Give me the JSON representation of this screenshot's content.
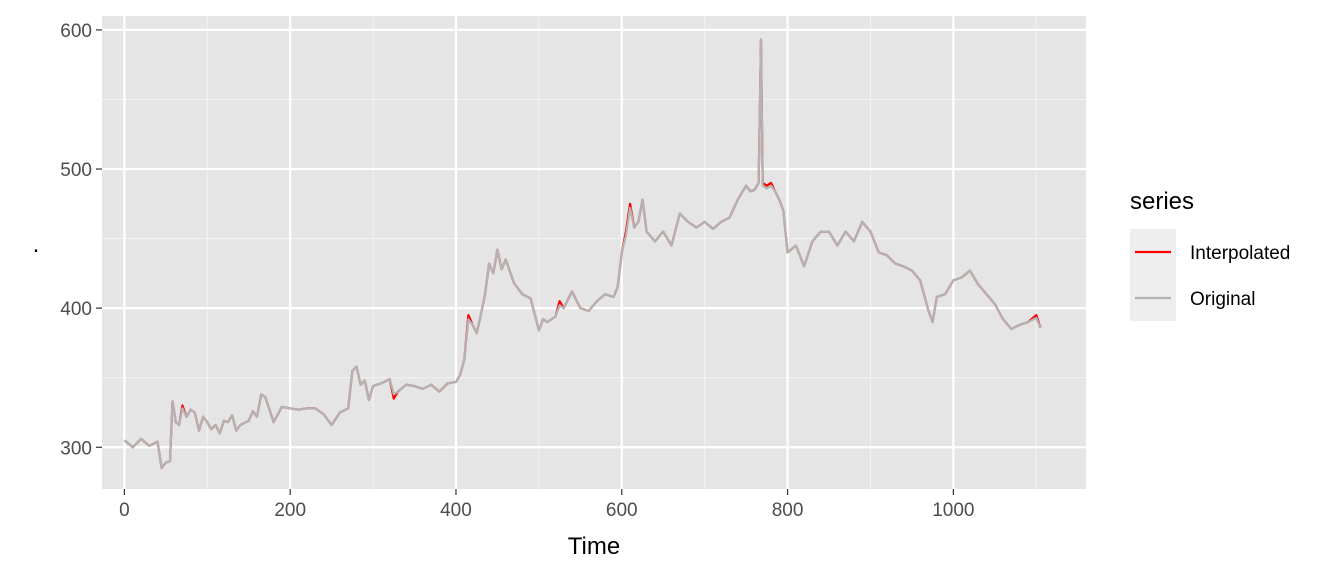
{
  "chart_data": {
    "type": "line",
    "title": "",
    "xlabel": "Time",
    "ylabel": ".",
    "xlim": [
      -27,
      1160
    ],
    "ylim": [
      270,
      610
    ],
    "x_ticks": [
      0,
      200,
      400,
      600,
      800,
      1000
    ],
    "x_tick_labels": [
      "0",
      "200",
      "400",
      "600",
      "800",
      "1000"
    ],
    "y_ticks": [
      300,
      400,
      500,
      600
    ],
    "y_tick_labels": [
      "300",
      "400",
      "500",
      "600"
    ],
    "grid": true,
    "legend": {
      "title": "series",
      "position": "right"
    },
    "series": [
      {
        "name": "Interpolated",
        "color": "#ff0000",
        "points": [
          [
            0,
            305
          ],
          [
            10,
            300
          ],
          [
            20,
            306
          ],
          [
            30,
            301
          ],
          [
            40,
            304
          ],
          [
            45,
            285
          ],
          [
            50,
            289
          ],
          [
            55,
            290
          ],
          [
            58,
            333
          ],
          [
            62,
            318
          ],
          [
            66,
            316
          ],
          [
            70,
            330
          ],
          [
            75,
            322
          ],
          [
            80,
            327
          ],
          [
            85,
            325
          ],
          [
            90,
            312
          ],
          [
            95,
            322
          ],
          [
            100,
            318
          ],
          [
            105,
            313
          ],
          [
            110,
            316
          ],
          [
            115,
            310
          ],
          [
            120,
            319
          ],
          [
            125,
            318
          ],
          [
            130,
            323
          ],
          [
            135,
            312
          ],
          [
            140,
            316
          ],
          [
            150,
            319
          ],
          [
            155,
            326
          ],
          [
            160,
            322
          ],
          [
            165,
            338
          ],
          [
            170,
            336
          ],
          [
            175,
            327
          ],
          [
            180,
            318
          ],
          [
            190,
            329
          ],
          [
            200,
            328
          ],
          [
            210,
            327
          ],
          [
            220,
            328
          ],
          [
            230,
            328
          ],
          [
            240,
            324
          ],
          [
            250,
            316
          ],
          [
            260,
            325
          ],
          [
            270,
            328
          ],
          [
            275,
            355
          ],
          [
            280,
            358
          ],
          [
            285,
            345
          ],
          [
            290,
            348
          ],
          [
            295,
            334
          ],
          [
            300,
            344
          ],
          [
            310,
            346
          ],
          [
            320,
            349
          ],
          [
            325,
            335
          ],
          [
            330,
            340
          ],
          [
            340,
            345
          ],
          [
            350,
            344
          ],
          [
            360,
            342
          ],
          [
            370,
            345
          ],
          [
            380,
            340
          ],
          [
            390,
            346
          ],
          [
            400,
            347
          ],
          [
            405,
            352
          ],
          [
            410,
            363
          ],
          [
            415,
            395
          ],
          [
            420,
            388
          ],
          [
            425,
            382
          ],
          [
            430,
            395
          ],
          [
            435,
            410
          ],
          [
            440,
            432
          ],
          [
            445,
            425
          ],
          [
            450,
            442
          ],
          [
            455,
            428
          ],
          [
            460,
            435
          ],
          [
            470,
            418
          ],
          [
            480,
            410
          ],
          [
            490,
            407
          ],
          [
            500,
            384
          ],
          [
            505,
            392
          ],
          [
            510,
            390
          ],
          [
            520,
            394
          ],
          [
            525,
            405
          ],
          [
            530,
            400
          ],
          [
            540,
            412
          ],
          [
            550,
            400
          ],
          [
            560,
            398
          ],
          [
            570,
            405
          ],
          [
            580,
            410
          ],
          [
            590,
            408
          ],
          [
            595,
            415
          ],
          [
            600,
            440
          ],
          [
            605,
            455
          ],
          [
            610,
            475
          ],
          [
            615,
            458
          ],
          [
            620,
            462
          ],
          [
            625,
            478
          ],
          [
            630,
            455
          ],
          [
            640,
            448
          ],
          [
            650,
            455
          ],
          [
            660,
            445
          ],
          [
            670,
            468
          ],
          [
            680,
            462
          ],
          [
            690,
            458
          ],
          [
            700,
            462
          ],
          [
            710,
            457
          ],
          [
            720,
            462
          ],
          [
            730,
            465
          ],
          [
            740,
            478
          ],
          [
            750,
            488
          ],
          [
            755,
            484
          ],
          [
            760,
            485
          ],
          [
            765,
            490
          ],
          [
            768,
            593
          ],
          [
            770,
            490
          ],
          [
            775,
            488
          ],
          [
            780,
            490
          ],
          [
            785,
            484
          ],
          [
            790,
            478
          ],
          [
            795,
            470
          ],
          [
            800,
            440
          ],
          [
            810,
            445
          ],
          [
            820,
            430
          ],
          [
            830,
            448
          ],
          [
            840,
            455
          ],
          [
            850,
            455
          ],
          [
            860,
            445
          ],
          [
            870,
            455
          ],
          [
            880,
            448
          ],
          [
            890,
            462
          ],
          [
            900,
            455
          ],
          [
            910,
            440
          ],
          [
            920,
            438
          ],
          [
            930,
            432
          ],
          [
            940,
            430
          ],
          [
            950,
            427
          ],
          [
            960,
            420
          ],
          [
            970,
            398
          ],
          [
            975,
            390
          ],
          [
            980,
            408
          ],
          [
            990,
            410
          ],
          [
            1000,
            420
          ],
          [
            1010,
            422
          ],
          [
            1020,
            427
          ],
          [
            1030,
            417
          ],
          [
            1040,
            410
          ],
          [
            1050,
            403
          ],
          [
            1060,
            392
          ],
          [
            1070,
            385
          ],
          [
            1080,
            388
          ],
          [
            1090,
            390
          ],
          [
            1100,
            395
          ],
          [
            1105,
            386
          ]
        ]
      },
      {
        "name": "Original",
        "color": "#b3b3b3",
        "points": [
          [
            0,
            305
          ],
          [
            10,
            300
          ],
          [
            20,
            306
          ],
          [
            30,
            301
          ],
          [
            40,
            304
          ],
          [
            45,
            285
          ],
          [
            50,
            289
          ],
          [
            55,
            290
          ],
          [
            58,
            333
          ],
          [
            62,
            318
          ],
          [
            66,
            316
          ],
          [
            70,
            328
          ],
          [
            75,
            322
          ],
          [
            80,
            327
          ],
          [
            85,
            325
          ],
          [
            90,
            312
          ],
          [
            95,
            322
          ],
          [
            100,
            318
          ],
          [
            105,
            313
          ],
          [
            110,
            316
          ],
          [
            115,
            310
          ],
          [
            120,
            319
          ],
          [
            125,
            318
          ],
          [
            130,
            323
          ],
          [
            135,
            312
          ],
          [
            140,
            316
          ],
          [
            150,
            319
          ],
          [
            155,
            326
          ],
          [
            160,
            322
          ],
          [
            165,
            338
          ],
          [
            170,
            336
          ],
          [
            175,
            327
          ],
          [
            180,
            318
          ],
          [
            190,
            329
          ],
          [
            200,
            328
          ],
          [
            210,
            327
          ],
          [
            220,
            328
          ],
          [
            230,
            328
          ],
          [
            240,
            324
          ],
          [
            250,
            316
          ],
          [
            260,
            325
          ],
          [
            270,
            328
          ],
          [
            275,
            355
          ],
          [
            280,
            358
          ],
          [
            285,
            345
          ],
          [
            290,
            348
          ],
          [
            295,
            334
          ],
          [
            300,
            344
          ],
          [
            310,
            346
          ],
          [
            320,
            349
          ],
          [
            325,
            338
          ],
          [
            330,
            340
          ],
          [
            340,
            345
          ],
          [
            350,
            344
          ],
          [
            360,
            342
          ],
          [
            370,
            345
          ],
          [
            380,
            340
          ],
          [
            390,
            346
          ],
          [
            400,
            347
          ],
          [
            405,
            352
          ],
          [
            410,
            363
          ],
          [
            415,
            392
          ],
          [
            420,
            388
          ],
          [
            425,
            382
          ],
          [
            430,
            395
          ],
          [
            435,
            410
          ],
          [
            440,
            432
          ],
          [
            445,
            425
          ],
          [
            450,
            442
          ],
          [
            455,
            428
          ],
          [
            460,
            435
          ],
          [
            470,
            418
          ],
          [
            480,
            410
          ],
          [
            490,
            407
          ],
          [
            500,
            384
          ],
          [
            505,
            392
          ],
          [
            510,
            390
          ],
          [
            520,
            394
          ],
          [
            525,
            402
          ],
          [
            530,
            400
          ],
          [
            540,
            412
          ],
          [
            550,
            400
          ],
          [
            560,
            398
          ],
          [
            570,
            405
          ],
          [
            580,
            410
          ],
          [
            590,
            408
          ],
          [
            595,
            415
          ],
          [
            600,
            440
          ],
          [
            605,
            452
          ],
          [
            610,
            472
          ],
          [
            615,
            458
          ],
          [
            620,
            462
          ],
          [
            625,
            478
          ],
          [
            630,
            455
          ],
          [
            640,
            448
          ],
          [
            650,
            455
          ],
          [
            660,
            445
          ],
          [
            670,
            468
          ],
          [
            680,
            462
          ],
          [
            690,
            458
          ],
          [
            700,
            462
          ],
          [
            710,
            457
          ],
          [
            720,
            462
          ],
          [
            730,
            465
          ],
          [
            740,
            478
          ],
          [
            750,
            488
          ],
          [
            755,
            484
          ],
          [
            760,
            485
          ],
          [
            765,
            490
          ],
          [
            768,
            593
          ],
          [
            770,
            488
          ],
          [
            775,
            486
          ],
          [
            780,
            488
          ],
          [
            785,
            484
          ],
          [
            790,
            478
          ],
          [
            795,
            470
          ],
          [
            800,
            440
          ],
          [
            810,
            445
          ],
          [
            820,
            430
          ],
          [
            830,
            448
          ],
          [
            840,
            455
          ],
          [
            850,
            455
          ],
          [
            860,
            445
          ],
          [
            870,
            455
          ],
          [
            880,
            448
          ],
          [
            890,
            462
          ],
          [
            900,
            455
          ],
          [
            910,
            440
          ],
          [
            920,
            438
          ],
          [
            930,
            432
          ],
          [
            940,
            430
          ],
          [
            950,
            427
          ],
          [
            960,
            420
          ],
          [
            970,
            398
          ],
          [
            975,
            390
          ],
          [
            980,
            408
          ],
          [
            990,
            410
          ],
          [
            1000,
            420
          ],
          [
            1010,
            422
          ],
          [
            1020,
            427
          ],
          [
            1030,
            417
          ],
          [
            1040,
            410
          ],
          [
            1050,
            403
          ],
          [
            1060,
            392
          ],
          [
            1070,
            385
          ],
          [
            1080,
            388
          ],
          [
            1090,
            390
          ],
          [
            1100,
            393
          ],
          [
            1105,
            386
          ]
        ]
      }
    ]
  }
}
